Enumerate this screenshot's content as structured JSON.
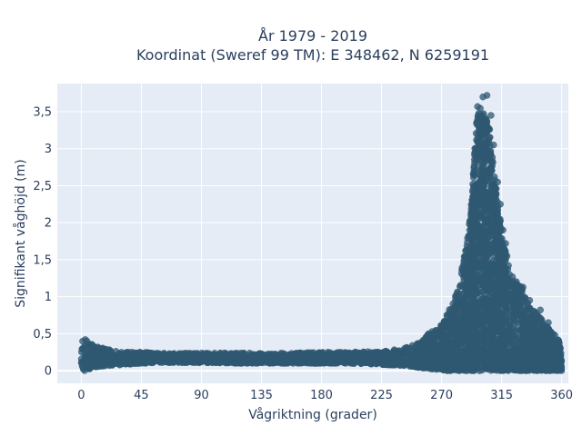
{
  "chart_data": {
    "type": "scatter",
    "title": "År 1979 - 2019",
    "subtitle": "Koordinat (Sweref 99 TM): E 348462, N 6259191",
    "xlabel": "Vågriktning (grader)",
    "ylabel": "Signifikant våghöjd (m)",
    "xlim": [
      -18,
      365
    ],
    "ylim": [
      -0.17,
      3.88
    ],
    "x_ticks": [
      0,
      45,
      90,
      135,
      180,
      225,
      270,
      315,
      360
    ],
    "x_tick_labels": [
      "0",
      "45",
      "90",
      "135",
      "180",
      "225",
      "270",
      "315",
      "360"
    ],
    "y_ticks": [
      0,
      0.5,
      1,
      1.5,
      2,
      2.5,
      3,
      3.5
    ],
    "y_tick_labels": [
      "0",
      "0,5",
      "1",
      "1,5",
      "2",
      "2,5",
      "3",
      "3,5"
    ],
    "grid": true,
    "marker_color": "#2f5871",
    "plot_bg": "#e5ecf6",
    "envelope": {
      "x": [
        0,
        1,
        3,
        10,
        20,
        30,
        45,
        60,
        90,
        120,
        150,
        180,
        200,
        220,
        230,
        240,
        250,
        255,
        260,
        265,
        270,
        275,
        280,
        285,
        290,
        293,
        296,
        298,
        300,
        302,
        305,
        308,
        310,
        312,
        315,
        318,
        320,
        325,
        330,
        335,
        340,
        345,
        350,
        355,
        358,
        360
      ],
      "max": [
        0.2,
        0.4,
        0.42,
        0.33,
        0.29,
        0.26,
        0.25,
        0.24,
        0.24,
        0.24,
        0.24,
        0.25,
        0.25,
        0.26,
        0.28,
        0.3,
        0.35,
        0.4,
        0.5,
        0.55,
        0.62,
        0.8,
        1.0,
        1.35,
        1.9,
        2.45,
        3.35,
        3.55,
        3.62,
        3.5,
        3.35,
        2.9,
        2.6,
        2.3,
        1.9,
        1.6,
        1.45,
        1.3,
        1.12,
        0.9,
        0.8,
        0.7,
        0.58,
        0.5,
        0.4,
        0.32
      ],
      "min": [
        0.0,
        0.0,
        0.0,
        0.05,
        0.07,
        0.08,
        0.1,
        0.11,
        0.11,
        0.1,
        0.1,
        0.1,
        0.1,
        0.09,
        0.08,
        0.07,
        0.05,
        0.04,
        0.03,
        0.02,
        0.01,
        0.0,
        0.0,
        0.0,
        0.0,
        0.0,
        0.0,
        0.0,
        0.0,
        0.0,
        0.0,
        0.0,
        0.0,
        0.0,
        0.0,
        0.0,
        0.0,
        0.0,
        0.0,
        0.0,
        0.0,
        0.0,
        0.0,
        0.0,
        0.0,
        0.0
      ]
    },
    "outliers": [
      {
        "x": 297,
        "y": 3.57
      },
      {
        "x": 301,
        "y": 3.7
      },
      {
        "x": 304,
        "y": 3.72
      },
      {
        "x": 307,
        "y": 3.45
      },
      {
        "x": 306,
        "y": 3.26
      },
      {
        "x": 309,
        "y": 3.05
      },
      {
        "x": 312,
        "y": 2.55
      },
      {
        "x": 314,
        "y": 2.25
      },
      {
        "x": 316,
        "y": 1.9
      },
      {
        "x": 318,
        "y": 1.72
      },
      {
        "x": 319,
        "y": 1.55
      },
      {
        "x": 331,
        "y": 1.13
      },
      {
        "x": 336,
        "y": 0.95
      },
      {
        "x": 344,
        "y": 0.82
      },
      {
        "x": 350,
        "y": 0.65
      },
      {
        "x": 288,
        "y": 1.55
      },
      {
        "x": 292,
        "y": 2.1
      },
      {
        "x": 294,
        "y": 2.65
      },
      {
        "x": 3,
        "y": 0.42
      },
      {
        "x": 1,
        "y": 0.4
      }
    ]
  }
}
